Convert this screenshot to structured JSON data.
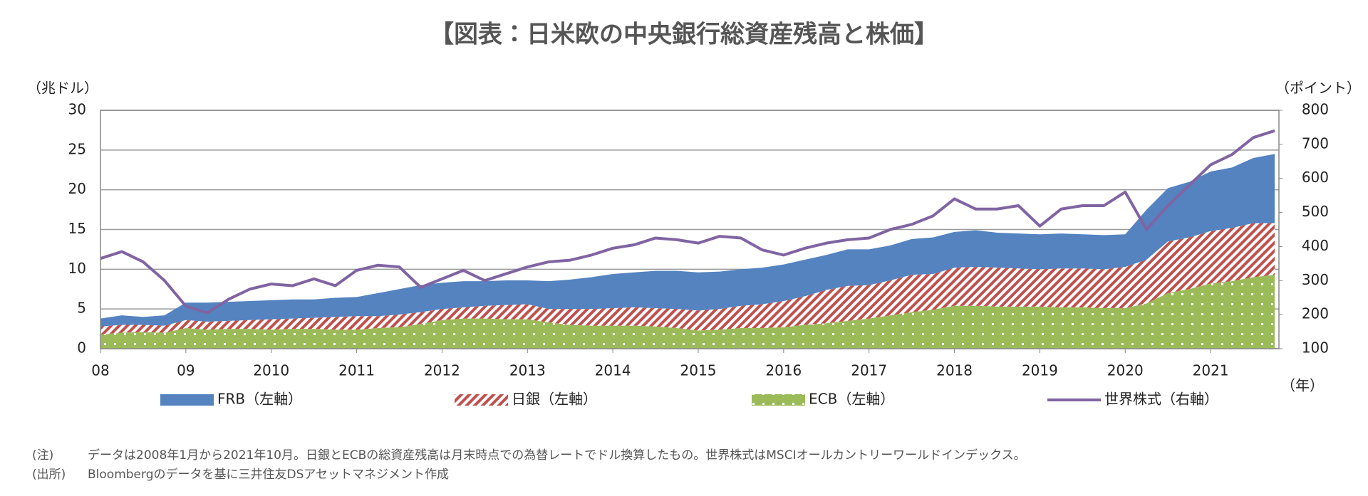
{
  "chart_data": {
    "type": "stacked-area-line",
    "title": "【図表：日米欧の中央銀行総資産残高と株価】",
    "y_label": "（兆ドル）",
    "y2_label": "（ポイント）",
    "x_label": "（年）",
    "x": [
      2008,
      2008.25,
      2008.5,
      2008.75,
      2009,
      2009.25,
      2009.5,
      2009.75,
      2010,
      2010.25,
      2010.5,
      2010.75,
      2011,
      2011.25,
      2011.5,
      2011.75,
      2012,
      2012.25,
      2012.5,
      2012.75,
      2013,
      2013.25,
      2013.5,
      2013.75,
      2014,
      2014.25,
      2014.5,
      2014.75,
      2015,
      2015.25,
      2015.5,
      2015.75,
      2016,
      2016.25,
      2016.5,
      2016.75,
      2017,
      2017.25,
      2017.5,
      2017.75,
      2018,
      2018.25,
      2018.5,
      2018.75,
      2019,
      2019.25,
      2019.5,
      2019.75,
      2020,
      2020.25,
      2020.5,
      2020.75,
      2021,
      2021.25,
      2021.5,
      2021.75
    ],
    "xlim": [
      2008,
      2021.8
    ],
    "xticks": [
      {
        "value": 2008,
        "label": "08"
      },
      {
        "value": 2009,
        "label": "09"
      },
      2010,
      2011,
      2012,
      2013,
      2014,
      2015,
      2016,
      2017,
      2018,
      2019,
      2020,
      2021
    ],
    "ylim": [
      0,
      30
    ],
    "yticks": [
      0,
      5,
      10,
      15,
      20,
      25,
      30
    ],
    "y2lim": [
      100,
      800
    ],
    "y2ticks": [
      100,
      200,
      300,
      400,
      500,
      600,
      700,
      800
    ],
    "grid": true,
    "series": [
      {
        "name": "ECB（左軸）",
        "color": "#9bbb59",
        "pattern": "dots",
        "values": [
          1.8,
          2.0,
          2.1,
          2.0,
          2.6,
          2.4,
          2.5,
          2.5,
          2.4,
          2.5,
          2.5,
          2.4,
          2.4,
          2.6,
          2.7,
          3.1,
          3.6,
          3.8,
          3.8,
          3.7,
          3.7,
          3.3,
          3.0,
          2.9,
          2.9,
          2.9,
          2.8,
          2.6,
          2.3,
          2.4,
          2.6,
          2.6,
          2.7,
          3.0,
          3.2,
          3.5,
          3.8,
          4.2,
          4.6,
          4.9,
          5.4,
          5.4,
          5.3,
          5.3,
          5.3,
          5.2,
          5.2,
          5.1,
          5.1,
          5.7,
          7.0,
          7.5,
          8.2,
          8.5,
          9.0,
          9.3
        ]
      },
      {
        "name": "日銀（左軸）",
        "color": "#c0504d",
        "pattern": "stripes",
        "values": [
          1.0,
          1.0,
          0.9,
          0.9,
          1.0,
          1.0,
          1.0,
          1.1,
          1.3,
          1.3,
          1.4,
          1.6,
          1.7,
          1.5,
          1.6,
          1.5,
          1.4,
          1.4,
          1.6,
          1.8,
          1.9,
          1.7,
          2.0,
          2.1,
          2.2,
          2.3,
          2.3,
          2.4,
          2.5,
          2.6,
          2.8,
          3.0,
          3.3,
          3.6,
          4.2,
          4.4,
          4.2,
          4.4,
          4.7,
          4.5,
          4.8,
          4.9,
          4.9,
          4.8,
          4.7,
          4.9,
          4.9,
          4.9,
          5.2,
          5.5,
          6.5,
          6.5,
          6.6,
          6.7,
          6.8,
          6.5
        ]
      },
      {
        "name": "FRB（左軸）",
        "color": "#5483c0",
        "pattern": "solid",
        "values": [
          1.0,
          1.2,
          1.0,
          1.3,
          2.2,
          2.4,
          2.4,
          2.4,
          2.4,
          2.4,
          2.3,
          2.4,
          2.4,
          2.9,
          3.2,
          3.4,
          3.3,
          3.3,
          3.1,
          3.1,
          3.0,
          3.5,
          3.7,
          4.0,
          4.3,
          4.4,
          4.7,
          4.8,
          4.8,
          4.7,
          4.6,
          4.6,
          4.6,
          4.6,
          4.4,
          4.6,
          4.5,
          4.4,
          4.5,
          4.6,
          4.5,
          4.6,
          4.4,
          4.4,
          4.4,
          4.4,
          4.3,
          4.3,
          4.1,
          6.3,
          6.7,
          7.0,
          7.5,
          7.6,
          8.2,
          8.7
        ]
      },
      {
        "name": "世界株式（右軸）",
        "color": "#8064a2",
        "axis": "y2",
        "line": true,
        "values": [
          365,
          385,
          355,
          300,
          225,
          205,
          245,
          275,
          290,
          285,
          305,
          285,
          330,
          345,
          340,
          280,
          305,
          330,
          300,
          320,
          340,
          355,
          360,
          375,
          395,
          405,
          425,
          420,
          410,
          430,
          425,
          390,
          375,
          395,
          410,
          420,
          425,
          450,
          465,
          490,
          540,
          510,
          510,
          520,
          460,
          510,
          520,
          520,
          560,
          450,
          520,
          580,
          640,
          670,
          720,
          740
        ]
      }
    ],
    "legend_order": [
      2,
      1,
      0,
      3
    ],
    "notes": [
      {
        "label": "(注)",
        "text": "データは2008年1月から2021年10月。日銀とECBの総資産残高は月末時点での為替レートでドル換算したもの。世界株式はMSCIオールカントリーワールドインデックス。"
      },
      {
        "label": "(出所)",
        "text": "Bloombergのデータを基に三井住友DSアセットマネジメント作成"
      }
    ]
  }
}
